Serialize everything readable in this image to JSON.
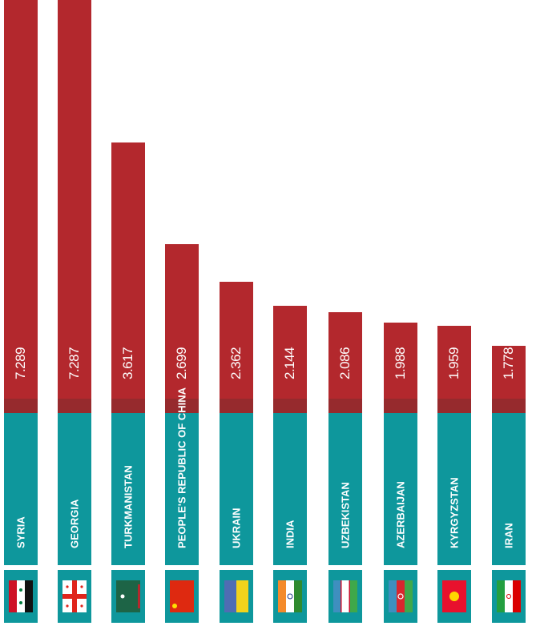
{
  "chart_data": {
    "type": "bar",
    "categories": [
      "SYRIA",
      "GEORGIA",
      "TURKMANISTAN",
      "PEOPLE'S REPUBLIC OF CHINA",
      "UKRAIN",
      "INDIA",
      "UZBEKISTAN",
      "AZERBAIJAN",
      "KYRGYZSTAN",
      "IRAN"
    ],
    "values": [
      "7.289",
      "7.287",
      "3.617",
      "2.699",
      "2.362",
      "2.144",
      "2.086",
      "1.988",
      "1.959",
      "1.778"
    ],
    "flags": [
      "syria-flag",
      "georgia-flag",
      "turkmenistan-flag",
      "china-flag",
      "ukraine-flag",
      "india-flag",
      "uzbekistan-flag",
      "azerbaijan-flag",
      "kyrgyzstan-flag",
      "iran-flag"
    ],
    "colors": {
      "bar": "#b3282d",
      "bar_base": "#962a2d",
      "label_bg": "#0e979c"
    }
  }
}
